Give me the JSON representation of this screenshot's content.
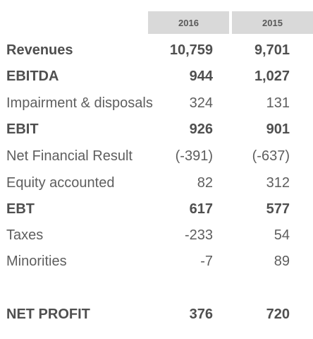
{
  "header": {
    "year_2016": "2016",
    "year_2015": "2015"
  },
  "rows": [
    {
      "label": "Revenues",
      "v2016": "10,759",
      "v2015": "9,701"
    },
    {
      "label": "EBITDA",
      "v2016": "944",
      "v2015": "1,027"
    },
    {
      "label": "Impairment & disposals",
      "v2016": "324",
      "v2015": "131"
    },
    {
      "label": "EBIT",
      "v2016": "926",
      "v2015": "901"
    },
    {
      "label": "Net Financial Result",
      "v2016": "(-391)",
      "v2015": "(-637)"
    },
    {
      "label": "Equity accounted",
      "v2016": "82",
      "v2015": "312"
    },
    {
      "label": "EBT",
      "v2016": "617",
      "v2015": "577"
    },
    {
      "label": "Taxes",
      "v2016": "-233",
      "v2015": "54"
    },
    {
      "label": "Minorities",
      "v2016": "-7",
      "v2015": "89"
    }
  ],
  "total": {
    "label": "NET PROFIT",
    "v2016": "376",
    "v2015": "720"
  }
}
